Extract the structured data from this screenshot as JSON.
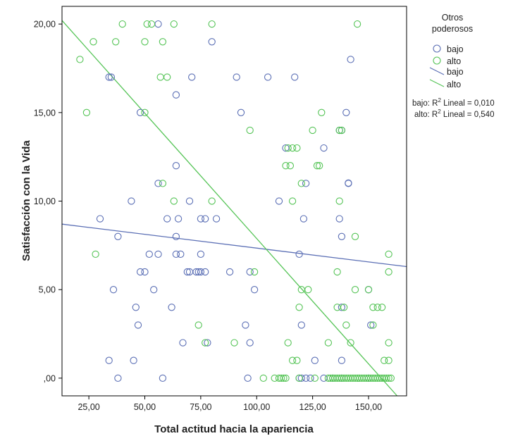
{
  "chart_data": {
    "type": "scatter",
    "xlabel": "Total actitud hacia la apariencia",
    "ylabel": "Satisfacción con la Vida",
    "xlim": [
      13,
      167
    ],
    "ylim": [
      -1,
      21
    ],
    "x_ticks": [
      {
        "value": 25,
        "label": "25,00"
      },
      {
        "value": 50,
        "label": "50,00"
      },
      {
        "value": 75,
        "label": "75,00"
      },
      {
        "value": 100,
        "label": "100,00"
      },
      {
        "value": 125,
        "label": "125,00"
      },
      {
        "value": 150,
        "label": "150,00"
      }
    ],
    "y_ticks": [
      {
        "value": 0,
        "label": ",00"
      },
      {
        "value": 5,
        "label": "5,00"
      },
      {
        "value": 10,
        "label": "10,00"
      },
      {
        "value": 15,
        "label": "15,00"
      },
      {
        "value": 20,
        "label": "20,00"
      }
    ],
    "grid": false,
    "legend": {
      "title_lines": [
        "Otros",
        "poderosos"
      ],
      "placement": "right",
      "marker_entries": [
        "bajo",
        "alto"
      ],
      "line_entries": [
        "bajo",
        "alto"
      ],
      "r2_lines": [
        {
          "prefix": "bajo: R",
          "sup": "2",
          "suffix": " Lineal = 0,010"
        },
        {
          "prefix": "alto: R",
          "sup": "2",
          "suffix": " Lineal = 0,540"
        }
      ]
    },
    "colors": {
      "bajo": "#5b6fb5",
      "alto": "#55c456",
      "frame": "#000000",
      "text": "#222222"
    },
    "series": [
      {
        "name": "bajo",
        "color": "#5b6fb5",
        "fit_line": {
          "x": [
            13,
            167
          ],
          "y": [
            8.7,
            6.3
          ]
        },
        "points": [
          [
            56,
            20
          ],
          [
            80,
            19
          ],
          [
            34,
            17
          ],
          [
            35,
            17
          ],
          [
            71,
            17
          ],
          [
            91,
            17
          ],
          [
            105,
            17
          ],
          [
            117,
            17
          ],
          [
            142,
            18
          ],
          [
            64,
            16
          ],
          [
            48,
            15
          ],
          [
            93,
            15
          ],
          [
            140,
            15
          ],
          [
            113,
            13
          ],
          [
            130,
            13
          ],
          [
            137,
            14
          ],
          [
            138,
            14
          ],
          [
            64,
            12
          ],
          [
            56,
            11
          ],
          [
            122,
            11
          ],
          [
            141,
            11
          ],
          [
            141,
            11.02
          ],
          [
            44,
            10
          ],
          [
            60,
            9
          ],
          [
            65,
            9
          ],
          [
            70,
            10
          ],
          [
            75,
            9
          ],
          [
            77,
            9
          ],
          [
            82,
            9
          ],
          [
            110,
            10
          ],
          [
            121,
            9
          ],
          [
            137,
            9
          ],
          [
            30,
            9
          ],
          [
            38,
            8
          ],
          [
            64,
            8
          ],
          [
            138,
            8
          ],
          [
            52,
            7
          ],
          [
            56,
            7
          ],
          [
            64,
            7
          ],
          [
            66,
            7
          ],
          [
            75,
            7
          ],
          [
            119,
            7
          ],
          [
            48,
            6
          ],
          [
            50,
            6
          ],
          [
            69,
            6
          ],
          [
            70,
            6
          ],
          [
            73,
            6
          ],
          [
            74,
            6
          ],
          [
            75,
            6
          ],
          [
            77,
            6
          ],
          [
            88,
            6
          ],
          [
            97,
            6
          ],
          [
            36,
            5
          ],
          [
            54,
            5
          ],
          [
            99,
            5
          ],
          [
            150,
            5
          ],
          [
            46,
            4
          ],
          [
            62,
            4
          ],
          [
            138,
            4
          ],
          [
            47,
            3
          ],
          [
            95,
            3
          ],
          [
            120,
            3
          ],
          [
            151,
            3
          ],
          [
            67,
            2
          ],
          [
            78,
            2
          ],
          [
            97,
            2
          ],
          [
            34,
            1
          ],
          [
            45,
            1
          ],
          [
            126,
            1
          ],
          [
            138,
            1
          ],
          [
            38,
            0
          ],
          [
            58,
            0
          ],
          [
            96,
            0
          ],
          [
            119,
            0
          ],
          [
            120,
            0
          ],
          [
            122,
            0
          ],
          [
            124,
            0
          ],
          [
            130,
            0
          ],
          [
            134,
            0
          ],
          [
            138,
            0
          ],
          [
            150,
            0
          ]
        ]
      },
      {
        "name": "alto",
        "color": "#55c456",
        "fit_line": {
          "x": [
            13,
            167
          ],
          "y": [
            20.2,
            -1.6
          ]
        },
        "points": [
          [
            40,
            20
          ],
          [
            51,
            20
          ],
          [
            53,
            20
          ],
          [
            63,
            20
          ],
          [
            80,
            20
          ],
          [
            145,
            20
          ],
          [
            27,
            19
          ],
          [
            37,
            19
          ],
          [
            50,
            19
          ],
          [
            58,
            19
          ],
          [
            21,
            18
          ],
          [
            57,
            17
          ],
          [
            60,
            17
          ],
          [
            24,
            15
          ],
          [
            50,
            15
          ],
          [
            129,
            15
          ],
          [
            97,
            14
          ],
          [
            125,
            14
          ],
          [
            137,
            14
          ],
          [
            138,
            14
          ],
          [
            114,
            13
          ],
          [
            116,
            13
          ],
          [
            118,
            13
          ],
          [
            113,
            12
          ],
          [
            115,
            12
          ],
          [
            127,
            12
          ],
          [
            128,
            12
          ],
          [
            120,
            11
          ],
          [
            58,
            11
          ],
          [
            63,
            10
          ],
          [
            80,
            10
          ],
          [
            116,
            10
          ],
          [
            137,
            10
          ],
          [
            144,
            8
          ],
          [
            28,
            7
          ],
          [
            159,
            7
          ],
          [
            99,
            6
          ],
          [
            136,
            6
          ],
          [
            159,
            6
          ],
          [
            120,
            5
          ],
          [
            123,
            5
          ],
          [
            144,
            5
          ],
          [
            150,
            5
          ],
          [
            119,
            4
          ],
          [
            136,
            4
          ],
          [
            139,
            4
          ],
          [
            152,
            4
          ],
          [
            154,
            4
          ],
          [
            156,
            4
          ],
          [
            74,
            3
          ],
          [
            140,
            3
          ],
          [
            152,
            3
          ],
          [
            90,
            2
          ],
          [
            77,
            2
          ],
          [
            114,
            2
          ],
          [
            132,
            2
          ],
          [
            142,
            2
          ],
          [
            159,
            2
          ],
          [
            116,
            1
          ],
          [
            118,
            1
          ],
          [
            157,
            1
          ],
          [
            159,
            1
          ],
          [
            103,
            0
          ],
          [
            108,
            0
          ],
          [
            110,
            0
          ],
          [
            111,
            0
          ],
          [
            112,
            0
          ],
          [
            113,
            0
          ],
          [
            119,
            0
          ],
          [
            126,
            0
          ],
          [
            132,
            0
          ],
          [
            133,
            0
          ],
          [
            134,
            0
          ],
          [
            135,
            0
          ],
          [
            136,
            0
          ],
          [
            137,
            0
          ],
          [
            138,
            0
          ],
          [
            139,
            0
          ],
          [
            140,
            0
          ],
          [
            141,
            0
          ],
          [
            142,
            0
          ],
          [
            143,
            0
          ],
          [
            144,
            0
          ],
          [
            145,
            0
          ],
          [
            146,
            0
          ],
          [
            147,
            0
          ],
          [
            148,
            0
          ],
          [
            149,
            0
          ],
          [
            150,
            0
          ],
          [
            151,
            0
          ],
          [
            152,
            0
          ],
          [
            153,
            0
          ],
          [
            154,
            0
          ],
          [
            155,
            0
          ],
          [
            156,
            0
          ],
          [
            157,
            0
          ],
          [
            158,
            0
          ],
          [
            159,
            0
          ],
          [
            160,
            0
          ]
        ]
      }
    ]
  }
}
